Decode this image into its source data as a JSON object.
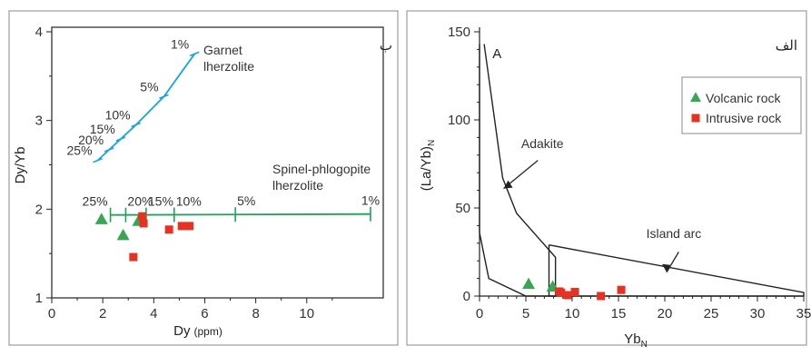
{
  "chart_data": [
    {
      "type": "line",
      "panel_label": "ب",
      "xlabel": "Dy",
      "xlabel_unit": "(ppm)",
      "ylabel": "Dy/Yb",
      "xlim": [
        0,
        13
      ],
      "ylim": [
        1,
        4
      ],
      "xticks": [
        0,
        2,
        4,
        6,
        8,
        10
      ],
      "yticks": [
        1,
        2,
        3,
        4
      ],
      "series": [
        {
          "name": "Garnet lherzolite",
          "label_lines": [
            "Garnet",
            "lherzolite"
          ],
          "color": "#1aa3e0",
          "points": [
            [
              1.8,
              2.55
            ],
            [
              2.25,
              2.67
            ],
            [
              2.7,
              2.79
            ],
            [
              3.3,
              2.95
            ],
            [
              4.4,
              3.27
            ],
            [
              5.6,
              3.75
            ]
          ],
          "melt_ticks": [
            {
              "label": "25%",
              "x": 1.8,
              "y": 2.55
            },
            {
              "label": "20%",
              "x": 2.25,
              "y": 2.67
            },
            {
              "label": "15%",
              "x": 2.7,
              "y": 2.79
            },
            {
              "label": "10%",
              "x": 3.3,
              "y": 2.95
            },
            {
              "label": "5%",
              "x": 4.4,
              "y": 3.27
            },
            {
              "label": "1%",
              "x": 5.6,
              "y": 3.75
            }
          ]
        },
        {
          "name": "Spinel-phlogopite lherzolite",
          "label_lines": [
            "Spinel-phlogopite",
            "lherzolite"
          ],
          "color": "#22a05a",
          "points": [
            [
              2.3,
              1.935
            ],
            [
              12.5,
              1.945
            ]
          ],
          "melt_ticks": [
            {
              "label": "25%",
              "x": 2.3,
              "y": 1.935
            },
            {
              "label": "20%",
              "x": 2.9,
              "y": 1.935
            },
            {
              "label": "15%",
              "x": 3.7,
              "y": 1.936
            },
            {
              "label": "10%",
              "x": 4.8,
              "y": 1.937
            },
            {
              "label": "5%",
              "x": 7.2,
              "y": 1.94
            },
            {
              "label": "1%",
              "x": 12.5,
              "y": 1.945
            }
          ]
        }
      ],
      "samples": [
        {
          "name": "Volcanic rock",
          "marker": "triangle",
          "color": "#3aa655",
          "points": [
            [
              1.95,
              1.88
            ],
            [
              2.8,
              1.7
            ],
            [
              3.4,
              1.86
            ]
          ]
        },
        {
          "name": "Intrusive rock",
          "marker": "square",
          "color": "#e63222",
          "points": [
            [
              3.55,
              1.92
            ],
            [
              3.6,
              1.84
            ],
            [
              4.6,
              1.77
            ],
            [
              5.1,
              1.81
            ],
            [
              5.4,
              1.81
            ],
            [
              3.2,
              1.46
            ]
          ]
        }
      ]
    },
    {
      "type": "line",
      "panel_label": "الف",
      "xlabel": "Yb",
      "xlabel_sub": "N",
      "ylabel": "(La/Yb)",
      "ylabel_sub": "N",
      "xlim": [
        0,
        35
      ],
      "ylim": [
        0,
        150
      ],
      "xticks": [
        0,
        5,
        10,
        15,
        20,
        25,
        30,
        35
      ],
      "yticks": [
        0,
        50,
        100,
        150
      ],
      "fields": [
        {
          "name": "A",
          "label": "A",
          "outline": [
            [
              0.5,
              143
            ],
            [
              2.5,
              67
            ],
            [
              4,
              47
            ],
            [
              8.2,
              22
            ],
            [
              8.2,
              0
            ],
            [
              5,
              0
            ],
            [
              1,
              10
            ],
            [
              0,
              36
            ],
            [
              0,
              143
            ]
          ]
        },
        {
          "name": "Adakite",
          "label": "Adakite"
        },
        {
          "name": "Island arc",
          "label": "Island arc",
          "outline": [
            [
              7.5,
              29
            ],
            [
              35,
              2
            ],
            [
              35,
              0
            ],
            [
              7.5,
              0
            ],
            [
              7.5,
              29
            ]
          ]
        }
      ],
      "legend": {
        "position": "top-right",
        "entries": [
          {
            "label": "Volcanic rock",
            "marker": "triangle",
            "color": "#3aa655"
          },
          {
            "label": "Intrusive rock",
            "marker": "square",
            "color": "#e63222"
          }
        ]
      },
      "samples": [
        {
          "name": "Volcanic rock",
          "marker": "triangle",
          "color": "#3aa655",
          "points": [
            [
              5.3,
              6.5
            ],
            [
              7.9,
              5.0
            ]
          ]
        },
        {
          "name": "Intrusive rock",
          "marker": "square",
          "color": "#e63222",
          "points": [
            [
              8.8,
              2.0
            ],
            [
              9.5,
              0.5
            ],
            [
              10.3,
              2.3
            ],
            [
              13.1,
              0.0
            ],
            [
              15.3,
              3.5
            ],
            [
              8.6,
              2.6
            ]
          ]
        }
      ]
    }
  ]
}
